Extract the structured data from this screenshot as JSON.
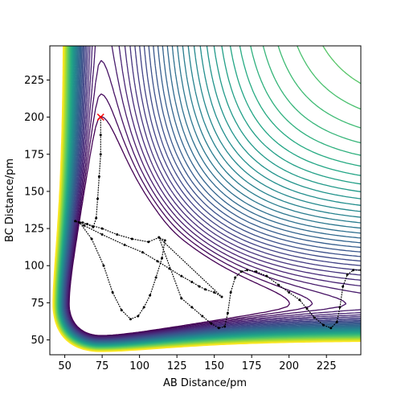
{
  "chart_data": {
    "type": "contour",
    "xlabel": "AB Distance/pm",
    "ylabel": "BC Distance/pm",
    "xlim": [
      40,
      248
    ],
    "ylim": [
      40,
      248
    ],
    "x_ticks": [
      50,
      75,
      100,
      125,
      150,
      175,
      200,
      225
    ],
    "y_ticks": [
      50,
      75,
      100,
      125,
      150,
      175,
      200,
      225
    ],
    "grid": false,
    "legend": "none",
    "colormap": "viridis",
    "start_marker": {
      "x": 74,
      "y": 200,
      "symbol": "x",
      "color": "#ff0000"
    },
    "trajectory": {
      "color": "#000000",
      "points": [
        [
          74,
          200
        ],
        [
          74,
          188
        ],
        [
          74,
          175
        ],
        [
          73,
          160
        ],
        [
          72,
          145
        ],
        [
          71,
          132
        ],
        [
          69,
          126
        ],
        [
          62,
          129
        ],
        [
          57,
          130
        ],
        [
          63,
          127
        ],
        [
          75,
          121
        ],
        [
          90,
          114
        ],
        [
          102,
          109
        ],
        [
          112,
          103
        ],
        [
          120,
          98
        ],
        [
          128,
          93
        ],
        [
          135,
          89
        ],
        [
          140,
          86
        ],
        [
          144,
          84
        ],
        [
          150,
          82
        ],
        [
          155,
          79
        ],
        [
          113,
          119
        ],
        [
          106,
          116
        ],
        [
          95,
          118
        ],
        [
          85,
          121
        ],
        [
          75,
          125
        ],
        [
          65,
          128
        ],
        [
          60,
          129
        ],
        [
          68,
          118
        ],
        [
          76,
          100
        ],
        [
          82,
          82
        ],
        [
          88,
          70
        ],
        [
          94,
          64
        ],
        [
          99,
          66
        ],
        [
          103,
          72
        ],
        [
          107,
          80
        ],
        [
          111,
          92
        ],
        [
          115,
          105
        ],
        [
          117,
          117
        ],
        [
          113,
          119
        ],
        [
          128,
          78
        ],
        [
          135,
          72
        ],
        [
          142,
          66
        ],
        [
          148,
          61
        ],
        [
          153,
          58
        ],
        [
          157,
          59
        ],
        [
          159,
          68
        ],
        [
          161,
          82
        ],
        [
          164,
          92
        ],
        [
          168,
          96
        ],
        [
          172,
          97
        ],
        [
          178,
          96
        ],
        [
          185,
          93
        ],
        [
          193,
          87
        ],
        [
          200,
          82
        ],
        [
          207,
          77
        ],
        [
          212,
          71
        ],
        [
          217,
          65
        ],
        [
          223,
          60
        ],
        [
          228,
          58
        ],
        [
          232,
          62
        ],
        [
          234,
          72
        ],
        [
          236,
          86
        ],
        [
          239,
          94
        ],
        [
          243,
          97
        ],
        [
          248,
          97
        ]
      ]
    }
  }
}
